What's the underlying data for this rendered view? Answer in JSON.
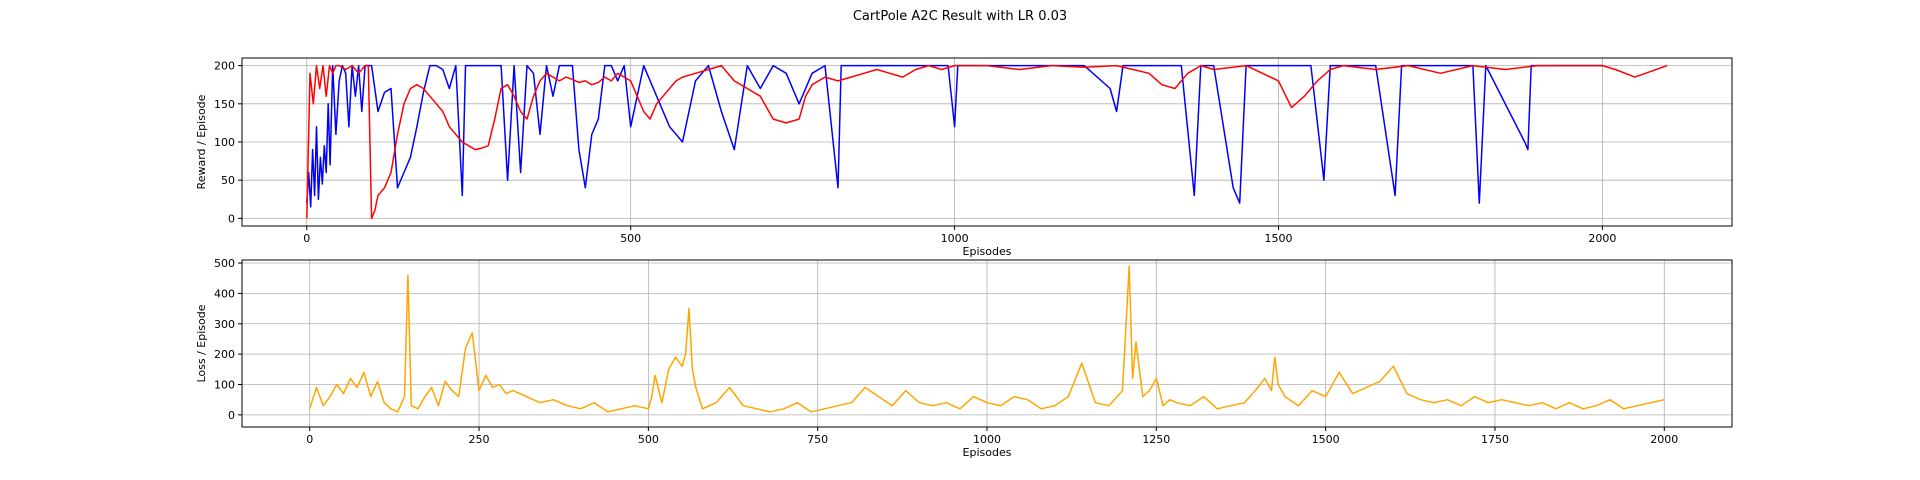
{
  "figure": {
    "title": "CartPole A2C Result with LR 0.03"
  },
  "chart_data": [
    {
      "type": "line",
      "title": "CartPole A2C Result with LR 0.03",
      "xlabel": "Episodes",
      "ylabel": "Reward / Episode",
      "xlim": [
        -100,
        2200
      ],
      "ylim": [
        -10,
        210
      ],
      "xticks": [
        0,
        500,
        1000,
        1500,
        2000
      ],
      "yticks": [
        0,
        50,
        100,
        150,
        200
      ],
      "grid": true,
      "legend": "none",
      "series": [
        {
          "color": "#0000ff",
          "x": [
            0,
            3,
            6,
            9,
            12,
            15,
            18,
            21,
            24,
            27,
            30,
            33,
            36,
            40,
            45,
            50,
            55,
            60,
            65,
            70,
            75,
            80,
            85,
            90,
            95,
            100,
            110,
            120,
            130,
            140,
            150,
            160,
            170,
            180,
            190,
            200,
            210,
            220,
            230,
            240,
            245,
            250,
            260,
            280,
            300,
            310,
            320,
            330,
            340,
            350,
            360,
            370,
            380,
            390,
            400,
            410,
            420,
            430,
            440,
            450,
            460,
            470,
            480,
            490,
            500,
            520,
            540,
            560,
            580,
            600,
            620,
            640,
            660,
            680,
            700,
            720,
            740,
            760,
            780,
            800,
            820,
            825,
            830,
            850,
            900,
            950,
            990,
            1000,
            1005,
            1010,
            1030,
            1060,
            1100,
            1150,
            1200,
            1240,
            1250,
            1260,
            1300,
            1350,
            1370,
            1380,
            1400,
            1430,
            1440,
            1450,
            1460,
            1500,
            1550,
            1570,
            1580,
            1600,
            1650,
            1680,
            1690,
            1700,
            1750,
            1800,
            1810,
            1820,
            1880,
            1885,
            1890,
            1900,
            1950,
            2000
          ],
          "y": [
            20,
            60,
            15,
            90,
            30,
            120,
            25,
            80,
            45,
            95,
            60,
            150,
            70,
            200,
            110,
            180,
            200,
            190,
            120,
            200,
            160,
            200,
            140,
            200,
            200,
            200,
            140,
            165,
            170,
            40,
            60,
            80,
            120,
            165,
            200,
            200,
            195,
            170,
            200,
            30,
            200,
            200,
            200,
            200,
            200,
            50,
            200,
            60,
            200,
            190,
            110,
            200,
            160,
            200,
            200,
            200,
            90,
            40,
            110,
            130,
            200,
            200,
            180,
            200,
            120,
            200,
            160,
            120,
            100,
            180,
            200,
            140,
            90,
            200,
            170,
            200,
            190,
            150,
            190,
            200,
            40,
            200,
            200,
            200,
            200,
            200,
            200,
            120,
            200,
            200,
            200,
            200,
            200,
            200,
            200,
            170,
            140,
            200,
            200,
            200,
            30,
            200,
            200,
            40,
            20,
            200,
            200,
            200,
            200,
            50,
            200,
            200,
            200,
            30,
            200,
            200,
            200,
            200,
            20,
            200,
            100,
            90,
            200,
            200,
            200,
            200
          ]
        },
        {
          "color": "#ff0000",
          "x": [
            0,
            5,
            10,
            15,
            20,
            25,
            30,
            35,
            40,
            45,
            50,
            60,
            70,
            80,
            90,
            95,
            100,
            105,
            110,
            120,
            130,
            140,
            150,
            160,
            170,
            180,
            190,
            200,
            210,
            220,
            230,
            240,
            250,
            260,
            270,
            280,
            290,
            300,
            310,
            320,
            330,
            340,
            350,
            360,
            370,
            380,
            390,
            400,
            410,
            420,
            430,
            440,
            450,
            460,
            470,
            480,
            490,
            500,
            510,
            520,
            530,
            540,
            550,
            560,
            570,
            580,
            600,
            620,
            640,
            660,
            680,
            700,
            720,
            740,
            760,
            770,
            780,
            790,
            800,
            820,
            840,
            860,
            880,
            900,
            920,
            940,
            960,
            980,
            1000,
            1050,
            1100,
            1150,
            1200,
            1250,
            1300,
            1320,
            1340,
            1360,
            1380,
            1400,
            1450,
            1500,
            1520,
            1540,
            1560,
            1580,
            1600,
            1650,
            1700,
            1750,
            1800,
            1850,
            1900,
            1950,
            2000,
            2020,
            2050,
            2100
          ],
          "y": [
            0,
            190,
            150,
            200,
            170,
            200,
            160,
            200,
            190,
            200,
            200,
            195,
            200,
            190,
            200,
            200,
            0,
            10,
            30,
            40,
            60,
            110,
            150,
            170,
            175,
            170,
            160,
            150,
            140,
            120,
            110,
            100,
            95,
            90,
            92,
            95,
            130,
            170,
            175,
            160,
            140,
            130,
            160,
            180,
            190,
            185,
            180,
            185,
            182,
            178,
            180,
            175,
            178,
            185,
            180,
            190,
            185,
            180,
            160,
            140,
            130,
            150,
            160,
            170,
            180,
            185,
            190,
            195,
            200,
            180,
            170,
            160,
            130,
            125,
            130,
            160,
            175,
            180,
            185,
            180,
            185,
            190,
            195,
            190,
            185,
            195,
            200,
            195,
            200,
            200,
            195,
            200,
            198,
            200,
            190,
            175,
            170,
            190,
            200,
            195,
            200,
            180,
            145,
            160,
            180,
            195,
            200,
            195,
            200,
            190,
            200,
            195,
            200,
            200,
            200,
            195,
            185,
            200
          ]
        }
      ]
    },
    {
      "type": "line",
      "xlabel": "Episodes",
      "ylabel": "Loss / Episode",
      "xlim": [
        -100,
        2100
      ],
      "ylim": [
        -40,
        510
      ],
      "xticks": [
        0,
        250,
        500,
        750,
        1000,
        1250,
        1500,
        1750,
        2000
      ],
      "yticks": [
        0,
        100,
        200,
        300,
        400,
        500
      ],
      "grid": true,
      "legend": "none",
      "series": [
        {
          "color": "#ffa500",
          "x": [
            0,
            10,
            20,
            30,
            40,
            50,
            60,
            70,
            80,
            90,
            100,
            110,
            120,
            130,
            140,
            145,
            150,
            160,
            170,
            180,
            190,
            200,
            210,
            220,
            230,
            240,
            250,
            260,
            270,
            280,
            290,
            300,
            320,
            340,
            360,
            380,
            400,
            420,
            440,
            460,
            480,
            500,
            505,
            510,
            520,
            530,
            540,
            550,
            555,
            560,
            565,
            570,
            580,
            600,
            620,
            640,
            660,
            680,
            700,
            720,
            740,
            760,
            780,
            800,
            820,
            840,
            860,
            880,
            900,
            920,
            940,
            960,
            980,
            1000,
            1020,
            1040,
            1060,
            1080,
            1100,
            1120,
            1140,
            1160,
            1180,
            1200,
            1210,
            1215,
            1220,
            1230,
            1240,
            1250,
            1260,
            1270,
            1280,
            1300,
            1320,
            1340,
            1360,
            1380,
            1400,
            1410,
            1420,
            1425,
            1430,
            1440,
            1460,
            1480,
            1500,
            1520,
            1540,
            1560,
            1580,
            1600,
            1620,
            1640,
            1660,
            1680,
            1700,
            1720,
            1740,
            1760,
            1780,
            1800,
            1820,
            1840,
            1860,
            1880,
            1900,
            1920,
            1940,
            1960,
            1980,
            2000
          ],
          "y": [
            20,
            90,
            30,
            60,
            100,
            70,
            120,
            90,
            140,
            60,
            110,
            40,
            20,
            10,
            60,
            460,
            30,
            20,
            60,
            90,
            30,
            110,
            80,
            60,
            220,
            270,
            80,
            130,
            90,
            100,
            70,
            80,
            60,
            40,
            50,
            30,
            20,
            40,
            10,
            20,
            30,
            20,
            60,
            130,
            40,
            150,
            190,
            160,
            200,
            350,
            150,
            90,
            20,
            40,
            90,
            30,
            20,
            10,
            20,
            40,
            10,
            20,
            30,
            40,
            90,
            60,
            30,
            80,
            40,
            30,
            40,
            20,
            60,
            40,
            30,
            60,
            50,
            20,
            30,
            60,
            170,
            40,
            30,
            80,
            490,
            120,
            240,
            60,
            80,
            120,
            30,
            50,
            40,
            30,
            60,
            20,
            30,
            40,
            90,
            120,
            80,
            190,
            100,
            60,
            30,
            80,
            60,
            140,
            70,
            90,
            110,
            160,
            70,
            50,
            40,
            50,
            30,
            60,
            40,
            50,
            40,
            30,
            40,
            20,
            40,
            20,
            30,
            50,
            20,
            30,
            40,
            50
          ]
        }
      ]
    }
  ]
}
